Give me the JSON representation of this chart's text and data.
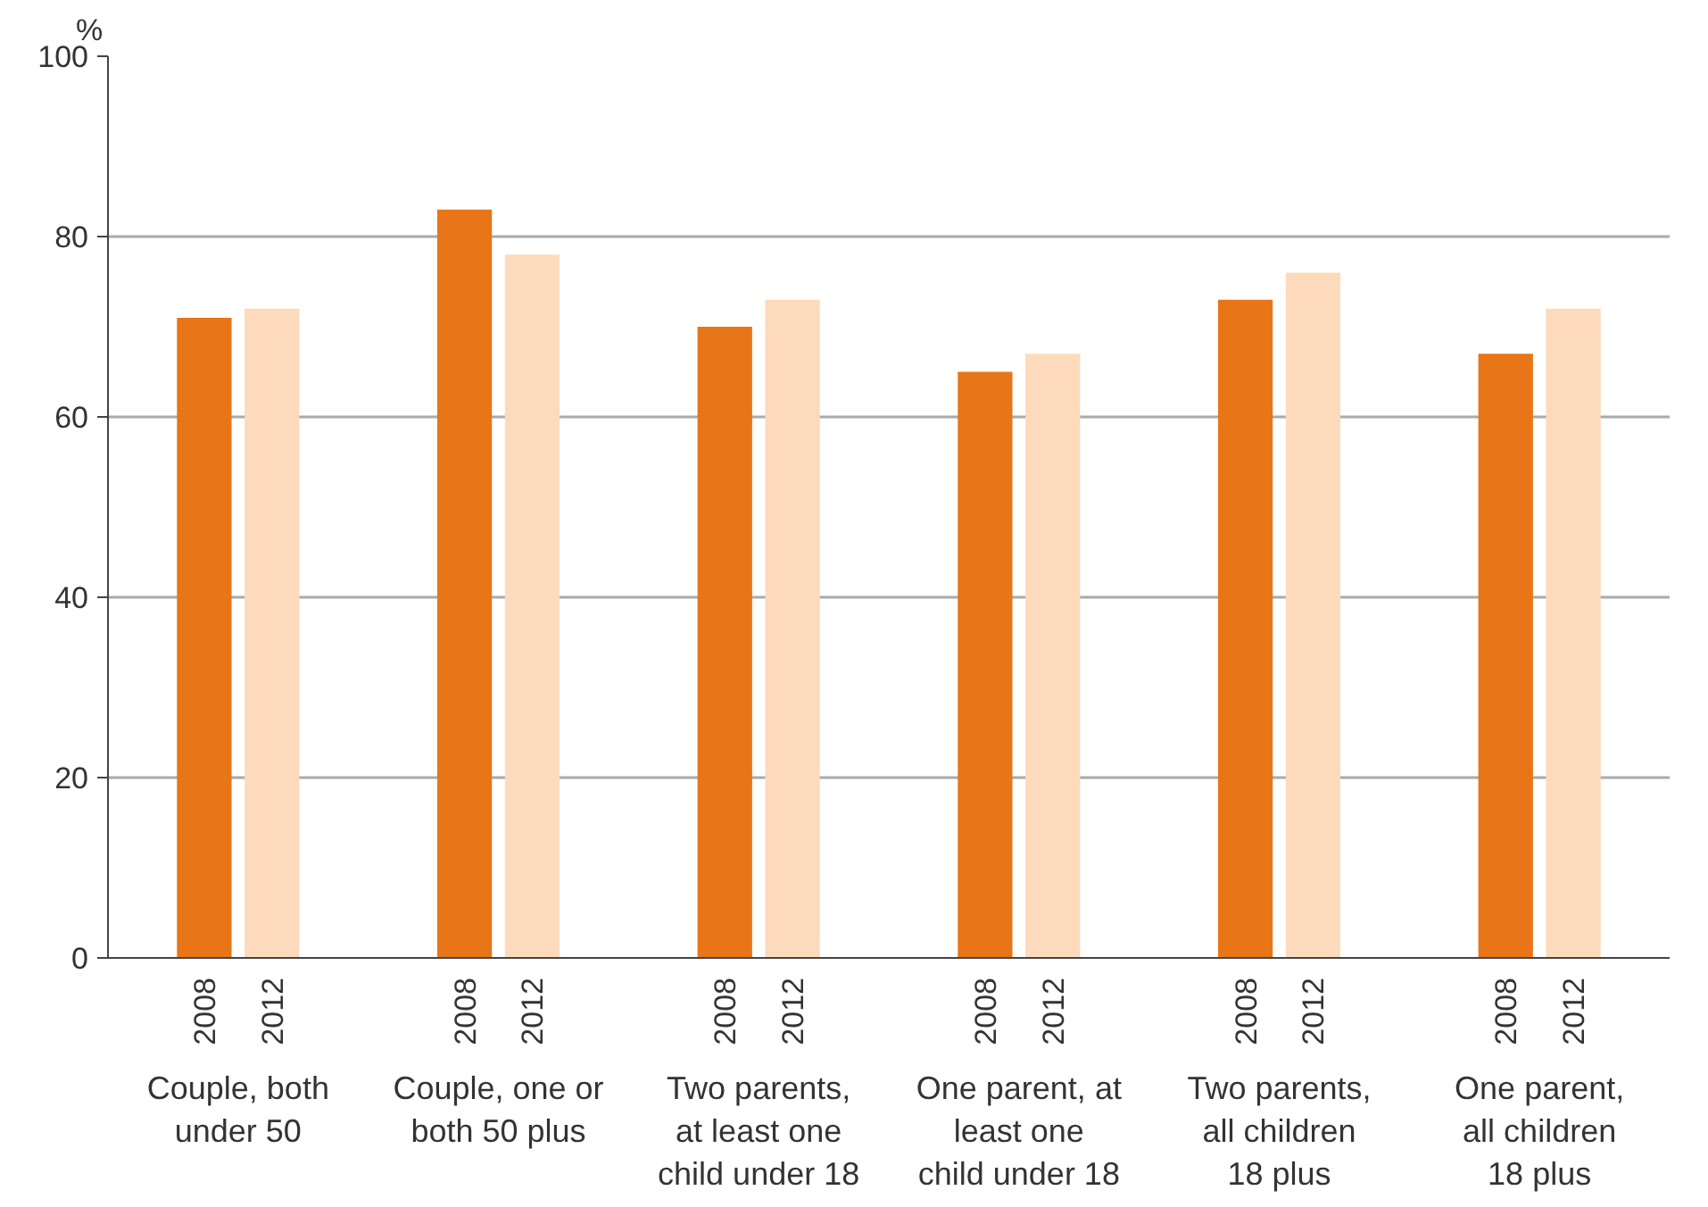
{
  "chart_data": {
    "type": "bar",
    "ylabel": "%",
    "categories": [
      "Couple, both under 50",
      "Couple, one or both 50 plus",
      "Two parents, at least one child under 18",
      "One parent, at least one child under 18",
      "Two parents, all children 18 plus",
      "One parent, all children 18 plus"
    ],
    "series": [
      {
        "name": "2008",
        "color": "#e87517",
        "values": [
          71,
          83,
          70,
          65,
          73,
          67
        ]
      },
      {
        "name": "2012",
        "color": "#fcdabb",
        "values": [
          72,
          78,
          73,
          67,
          76,
          72
        ]
      }
    ],
    "ylim": [
      0,
      100
    ],
    "yticks": [
      0,
      20,
      40,
      60,
      80,
      100
    ],
    "grid": "y"
  }
}
